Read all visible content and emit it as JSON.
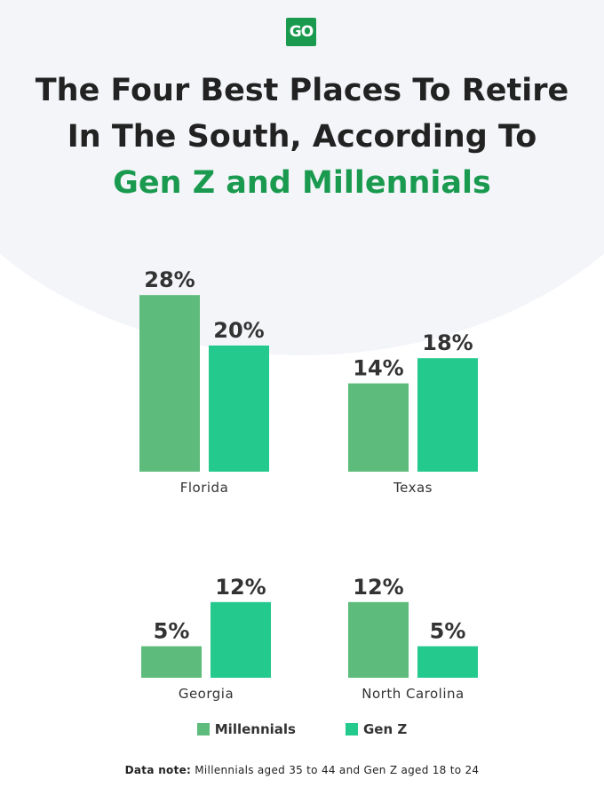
{
  "logo": {
    "text": "GO",
    "color": "#1a9a4f"
  },
  "title": {
    "line1": "The Four Best Places To Retire",
    "line2": "In The South, According To",
    "line3": "Gen Z and Millennials"
  },
  "colors": {
    "millennials": "#5dbb7b",
    "genz": "#24c98e",
    "accent": "#1a9a4f"
  },
  "chart_data": {
    "type": "bar",
    "title": "The Four Best Places To Retire In The South, According To Gen Z and Millennials",
    "unit": "%",
    "categories": [
      "Florida",
      "Texas",
      "Georgia",
      "North Carolina"
    ],
    "series": [
      {
        "name": "Millennials",
        "values": [
          28,
          14,
          5,
          12
        ]
      },
      {
        "name": "Gen Z",
        "values": [
          20,
          18,
          12,
          5
        ]
      }
    ]
  },
  "note": {
    "label": "Data note:",
    "text": " Millennials aged 35 to 44 and Gen Z aged 18 to 24"
  }
}
